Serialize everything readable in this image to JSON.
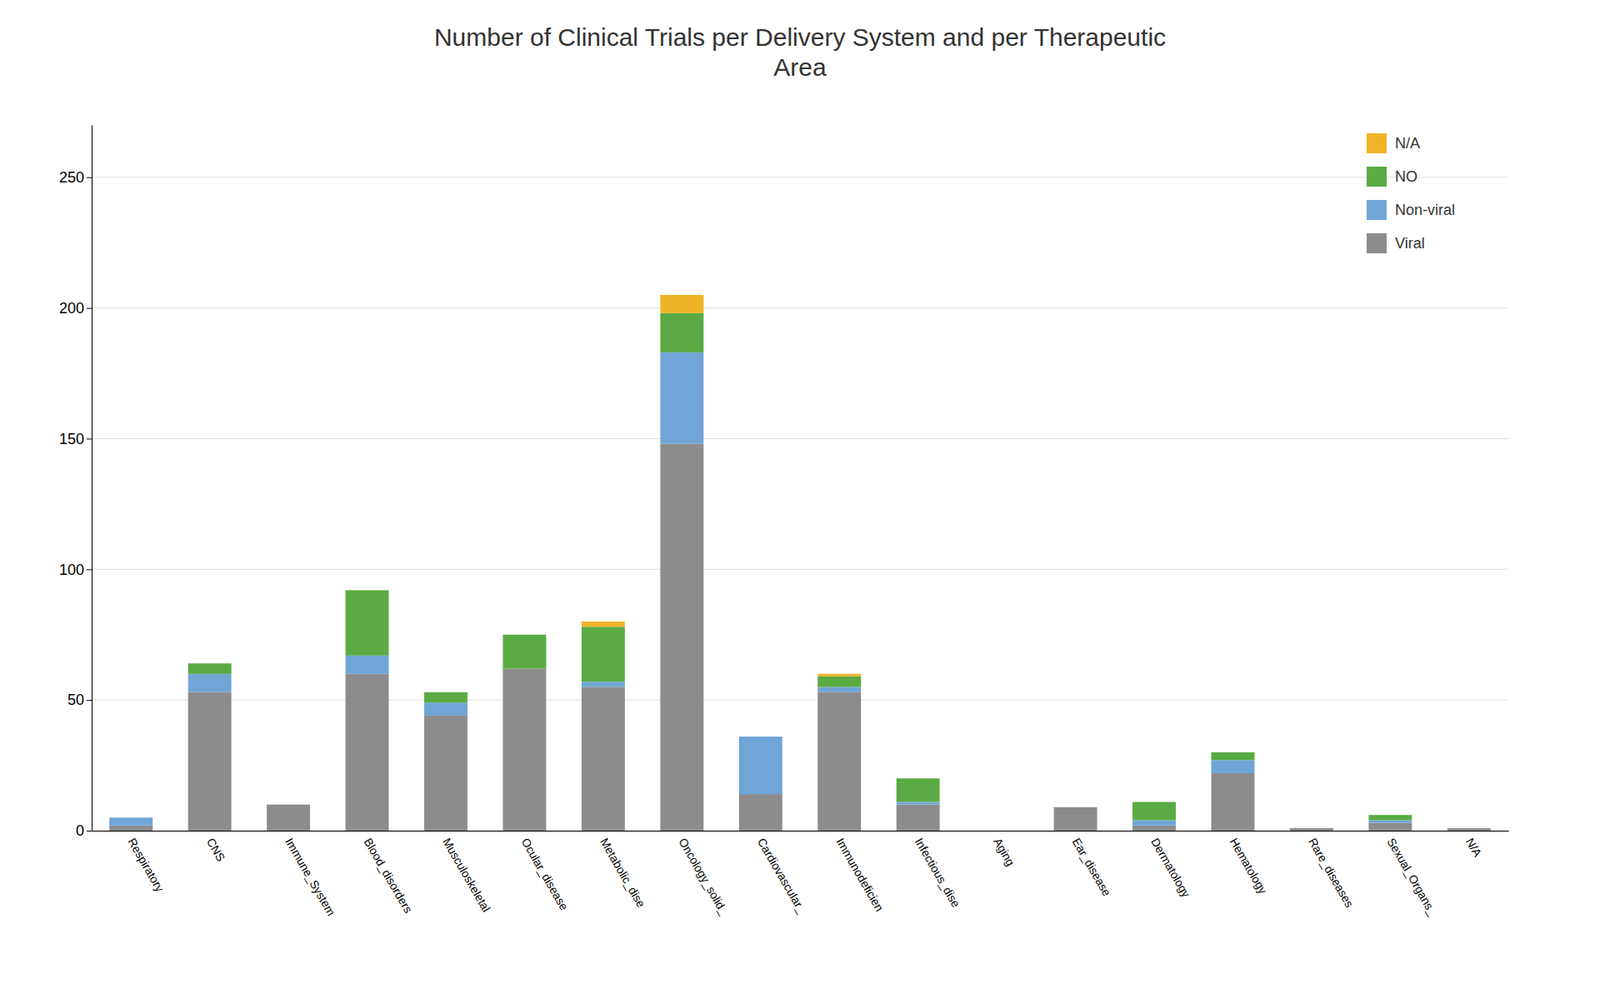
{
  "chart_data": {
    "type": "bar",
    "title": "Number of Clinical Trials per Delivery System and per Therapeutic\nArea",
    "categories": [
      "Respiratory",
      "CNS",
      "Immune_System",
      "Blood_disorders",
      "Musculoskeletal",
      "Ocular_disease",
      "Metabolic_dise",
      "Oncology_solid_",
      "Cardiovascular_",
      "Immunodeficien",
      "Infectious_dise",
      "Aging",
      "Ear_disease",
      "Dermatology",
      "Hematology",
      "Rare_diseases",
      "Sexual_Organs_",
      "N/A"
    ],
    "series": [
      {
        "name": "Viral",
        "color": "#8c8c8c",
        "values": [
          2,
          53,
          10,
          60,
          44,
          62,
          55,
          148,
          14,
          53,
          10,
          0,
          9,
          2,
          22,
          1,
          3,
          1
        ]
      },
      {
        "name": "Non-viral",
        "color": "#70a5d8",
        "values": [
          3,
          7,
          0,
          7,
          5,
          0,
          2,
          35,
          22,
          2,
          1,
          0,
          0,
          2,
          5,
          0,
          1,
          0
        ]
      },
      {
        "name": "NO",
        "color": "#5aab44",
        "values": [
          0,
          4,
          0,
          25,
          4,
          13,
          21,
          15,
          0,
          4,
          9,
          0,
          0,
          7,
          3,
          0,
          2,
          0
        ]
      },
      {
        "name": "N/A",
        "color": "#f0b429",
        "values": [
          0,
          0,
          0,
          0,
          0,
          0,
          2,
          7,
          0,
          1,
          0,
          0,
          0,
          0,
          0,
          0,
          0,
          0
        ]
      }
    ],
    "stacked": true,
    "ylim": [
      0,
      270
    ],
    "yticks": [
      0,
      50,
      100,
      150,
      200,
      250
    ],
    "grid": true,
    "legend": "upper right"
  }
}
